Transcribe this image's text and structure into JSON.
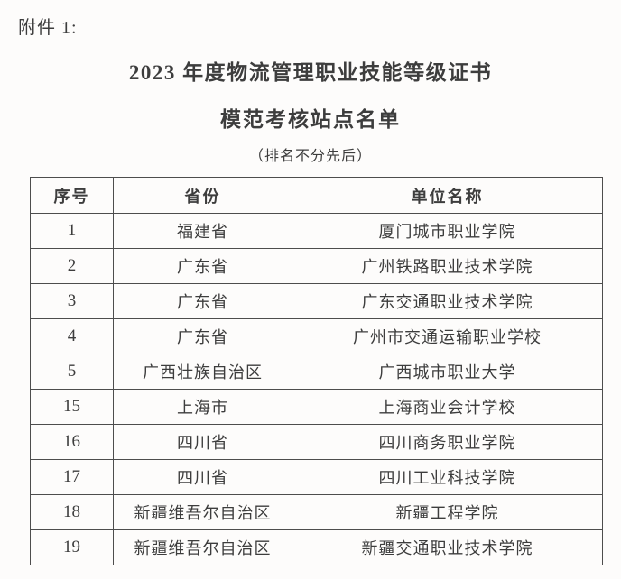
{
  "page": {
    "attachment_label": "附件 1:",
    "title_line1": "2023 年度物流管理职业技能等级证书",
    "title_line2": "模范考核站点名单",
    "note": "（排名不分先后）"
  },
  "table": {
    "headers": {
      "no": "序号",
      "province": "省份",
      "unit": "单位名称"
    },
    "rows": [
      {
        "no": "1",
        "province": "福建省",
        "unit": "厦门城市职业学院"
      },
      {
        "no": "2",
        "province": "广东省",
        "unit": "广州铁路职业技术学院"
      },
      {
        "no": "3",
        "province": "广东省",
        "unit": "广东交通职业技术学院"
      },
      {
        "no": "4",
        "province": "广东省",
        "unit": "广州市交通运输职业学校"
      },
      {
        "no": "5",
        "province": "广西壮族自治区",
        "unit": "广西城市职业大学"
      },
      {
        "no": "15",
        "province": "上海市",
        "unit": "上海商业会计学校"
      },
      {
        "no": "16",
        "province": "四川省",
        "unit": "四川商务职业学院"
      },
      {
        "no": "17",
        "province": "四川省",
        "unit": "四川工业科技学院"
      },
      {
        "no": "18",
        "province": "新疆维吾尔自治区",
        "unit": "新疆工程学院"
      },
      {
        "no": "19",
        "province": "新疆维吾尔自治区",
        "unit": "新疆交通职业技术学院"
      }
    ]
  },
  "colors": {
    "background": "#fdfcfb",
    "text": "#3d3d3d",
    "border": "#4d4d4d"
  }
}
